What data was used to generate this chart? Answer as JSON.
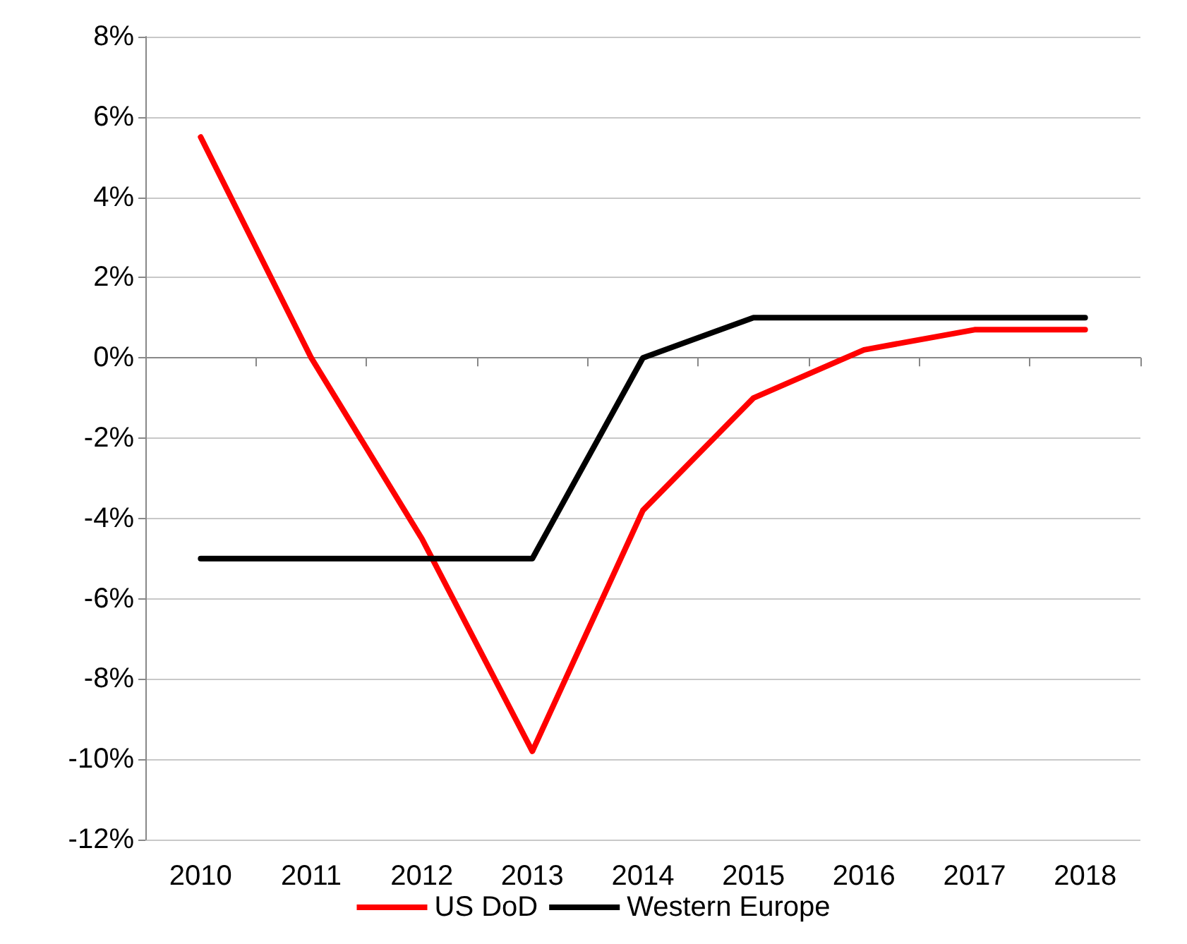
{
  "chart_data": {
    "type": "line",
    "categories": [
      "2010",
      "2011",
      "2012",
      "2013",
      "2014",
      "2015",
      "2016",
      "2017",
      "2018"
    ],
    "series": [
      {
        "name": "US DoD",
        "color": "#ff0000",
        "values": [
          5.5,
          0,
          -4.5,
          -9.8,
          -3.8,
          -1.0,
          0.2,
          0.7,
          0.7
        ]
      },
      {
        "name": "Western Europe",
        "color": "#000000",
        "values": [
          -5,
          -5,
          -5,
          -5,
          0,
          1,
          1,
          1,
          1
        ]
      }
    ],
    "ylim": [
      -12,
      8
    ],
    "yticks": [
      {
        "value": -12,
        "label": "-12%"
      },
      {
        "value": -10,
        "label": "-10%"
      },
      {
        "value": -8,
        "label": "-8%"
      },
      {
        "value": -6,
        "label": "-6%"
      },
      {
        "value": -4,
        "label": "-4%"
      },
      {
        "value": -2,
        "label": "-2%"
      },
      {
        "value": 0,
        "label": "0%"
      },
      {
        "value": 2,
        "label": "2%"
      },
      {
        "value": 4,
        "label": "4%"
      },
      {
        "value": 6,
        "label": "6%"
      },
      {
        "value": 8,
        "label": "8%"
      }
    ],
    "grid": "y",
    "legend": "bottom",
    "marker": "none",
    "line_style": "solid"
  }
}
